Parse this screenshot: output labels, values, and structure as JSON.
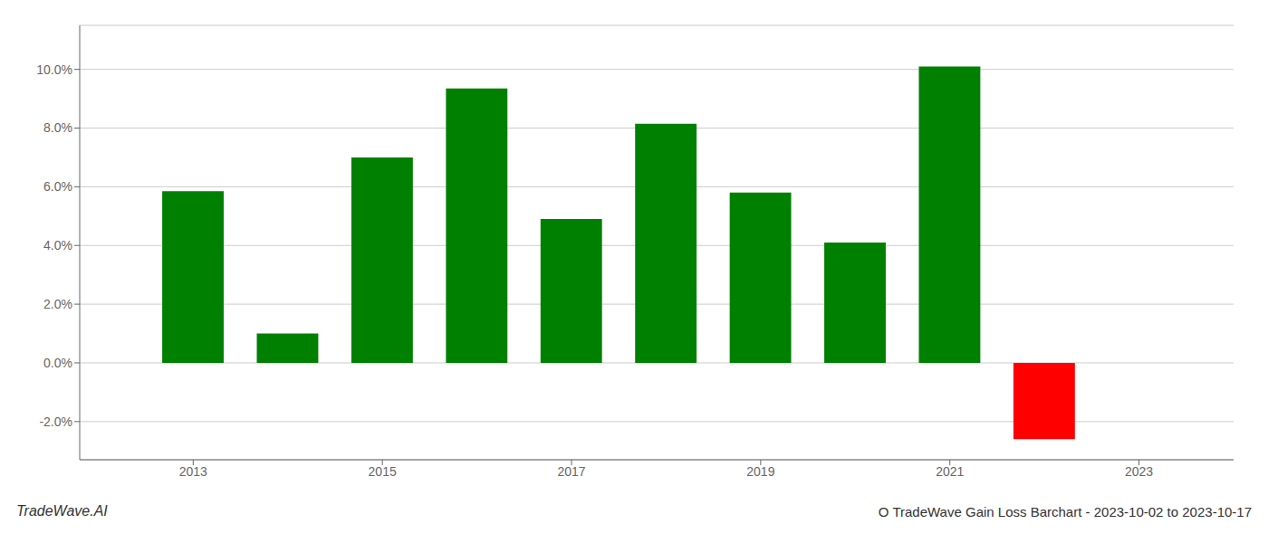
{
  "chart_data": {
    "type": "bar",
    "title": "O TradeWave Gain Loss Barchart - 2023-10-02 to 2023-10-17",
    "annotations": [
      "TradeWave.AI"
    ],
    "x": [
      2013,
      2014,
      2015,
      2016,
      2017,
      2018,
      2019,
      2020,
      2021,
      2022
    ],
    "values": [
      0.0585,
      0.01,
      0.07,
      0.0935,
      0.049,
      0.0815,
      0.058,
      0.041,
      0.101,
      -0.026
    ],
    "colors": [
      "#008000",
      "#008000",
      "#008000",
      "#008000",
      "#008000",
      "#008000",
      "#008000",
      "#008000",
      "#008000",
      "#ff0000"
    ],
    "xlim": [
      2011.8,
      2024.0
    ],
    "xticks": [
      2013,
      2015,
      2017,
      2019,
      2021,
      2023
    ],
    "ylim": [
      -0.033,
      0.115
    ],
    "yticks": [
      {
        "value": -0.02,
        "label": "-2.0%"
      },
      {
        "value": 0,
        "label": "0.0%"
      },
      {
        "value": 0.02,
        "label": "2.0%"
      },
      {
        "value": 0.04,
        "label": "4.0%"
      },
      {
        "value": 0.06,
        "label": "6.0%"
      },
      {
        "value": 0.08,
        "label": "8.0%"
      },
      {
        "value": 0.1,
        "label": "10.0%"
      }
    ],
    "grid": true
  }
}
